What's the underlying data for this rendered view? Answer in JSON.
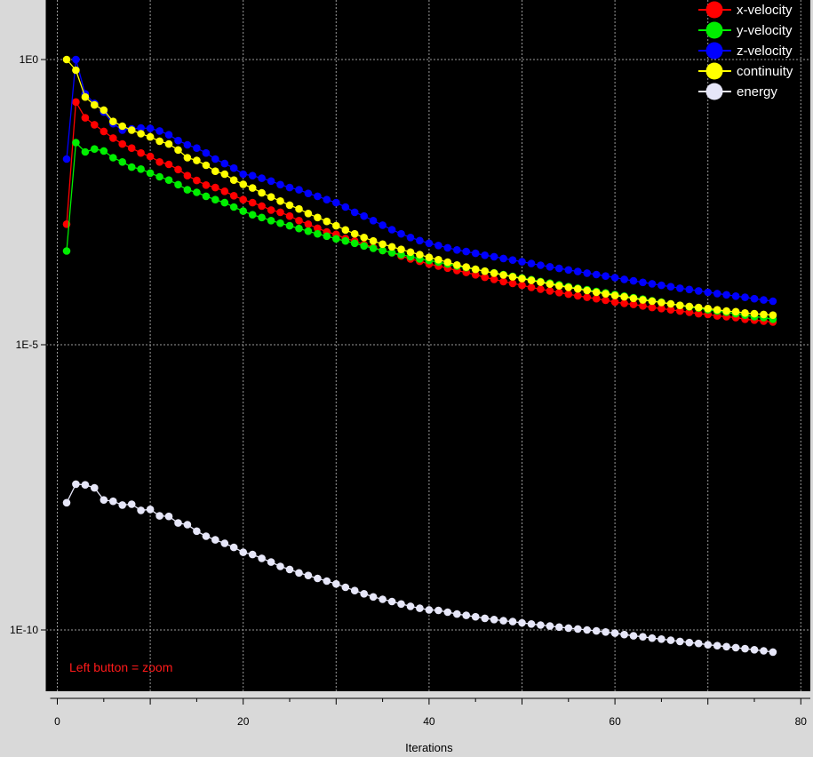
{
  "hint": "Left button = zoom",
  "colors": {
    "background": "#d9d9d9",
    "plot_bg": "#000000",
    "grid": "#9a9a9a",
    "hint": "#ff1a1a"
  },
  "chart_data": {
    "type": "line",
    "title": "",
    "xlabel": "Iterations",
    "ylabel": "",
    "yscale": "log",
    "xlim": [
      0,
      80
    ],
    "ylim": [
      1e-11,
      10
    ],
    "x_ticks": [
      0,
      20,
      40,
      60,
      80
    ],
    "x_tick_labels": [
      "0",
      "20",
      "40",
      "60",
      "80"
    ],
    "y_ticks": [
      1,
      1e-05,
      1e-10
    ],
    "y_tick_labels": [
      "1E0",
      "1E-5",
      "1E-10"
    ],
    "grid": true,
    "legend_position": "top-right",
    "x": [
      1,
      2,
      3,
      4,
      5,
      6,
      7,
      8,
      9,
      10,
      11,
      12,
      13,
      14,
      15,
      16,
      17,
      18,
      19,
      20,
      21,
      22,
      23,
      24,
      25,
      26,
      27,
      28,
      29,
      30,
      31,
      32,
      33,
      34,
      35,
      36,
      37,
      38,
      39,
      40,
      41,
      42,
      43,
      44,
      45,
      46,
      47,
      48,
      49,
      50,
      51,
      52,
      53,
      54,
      55,
      56,
      57,
      58,
      59,
      60,
      61,
      62,
      63,
      64,
      65,
      66,
      67,
      68,
      69,
      70,
      71,
      72,
      73,
      74,
      75,
      76,
      77
    ],
    "series": [
      {
        "name": "x-velocity",
        "color": "#ff0000",
        "values": [
          0.0013,
          0.18,
          0.095,
          0.072,
          0.055,
          0.042,
          0.033,
          0.028,
          0.023,
          0.02,
          0.016,
          0.0145,
          0.0118,
          0.0092,
          0.0076,
          0.0063,
          0.0057,
          0.0049,
          0.0041,
          0.0035,
          0.0031,
          0.0027,
          0.0023,
          0.0021,
          0.0018,
          0.0015,
          0.0013,
          0.0011,
          0.00095,
          0.00086,
          0.00073,
          0.00066,
          0.00057,
          0.00051,
          0.00045,
          0.00041,
          0.00036,
          0.00032,
          0.00029,
          0.00026,
          0.00024,
          0.00022,
          0.0002,
          0.000185,
          0.000168,
          0.000152,
          0.00014,
          0.000128,
          0.000119,
          0.00011,
          0.000101,
          9.4e-05,
          8.8e-05,
          8.2e-05,
          7.7e-05,
          7.2e-05,
          6.8e-05,
          6.4e-05,
          6e-05,
          5.6e-05,
          5.3e-05,
          5.1e-05,
          4.8e-05,
          4.5e-05,
          4.3e-05,
          4.1e-05,
          3.9e-05,
          3.7e-05,
          3.5e-05,
          3.4e-05,
          3.2e-05,
          3.1e-05,
          3e-05,
          2.8e-05,
          2.7e-05,
          2.6e-05,
          2.5e-05
        ]
      },
      {
        "name": "y-velocity",
        "color": "#00ee00",
        "values": [
          0.00044,
          0.035,
          0.024,
          0.027,
          0.025,
          0.019,
          0.016,
          0.013,
          0.012,
          0.0102,
          0.0088,
          0.0077,
          0.0064,
          0.0052,
          0.0047,
          0.004,
          0.0035,
          0.0031,
          0.0026,
          0.0022,
          0.0019,
          0.0017,
          0.0015,
          0.00135,
          0.00122,
          0.00109,
          0.00098,
          0.00088,
          0.0008,
          0.00072,
          0.00066,
          0.0006,
          0.00054,
          0.00049,
          0.00045,
          0.00041,
          0.00038,
          0.00035,
          0.00032,
          0.0003,
          0.00028,
          0.00026,
          0.00024,
          0.000225,
          0.00021,
          0.000195,
          0.000182,
          0.00017,
          0.000158,
          0.000148,
          0.000138,
          0.000128,
          0.00012,
          0.000112,
          0.000104,
          9.8e-05,
          9.2e-05,
          8.6e-05,
          8.1e-05,
          7.6e-05,
          7.1e-05,
          6.7e-05,
          6.3e-05,
          5.9e-05,
          5.6e-05,
          5.2e-05,
          4.9e-05,
          4.6e-05,
          4.4e-05,
          4.1e-05,
          3.9e-05,
          3.7e-05,
          3.5e-05,
          3.3e-05,
          3.1e-05,
          3e-05,
          2.8e-05
        ]
      },
      {
        "name": "z-velocity",
        "color": "#0000ff",
        "values": [
          0.018,
          1.0,
          0.25,
          0.17,
          0.12,
          0.075,
          0.058,
          0.061,
          0.063,
          0.062,
          0.056,
          0.048,
          0.038,
          0.032,
          0.028,
          0.023,
          0.018,
          0.015,
          0.0125,
          0.0098,
          0.0092,
          0.0083,
          0.0074,
          0.0064,
          0.0057,
          0.0052,
          0.0045,
          0.004,
          0.0035,
          0.0031,
          0.0026,
          0.0021,
          0.0018,
          0.0015,
          0.00125,
          0.00104,
          0.00088,
          0.00076,
          0.00067,
          0.0006,
          0.00055,
          0.0005,
          0.00046,
          0.00043,
          0.0004,
          0.00037,
          0.00035,
          0.000325,
          0.000305,
          0.000285,
          0.000265,
          0.000248,
          0.000232,
          0.000218,
          0.000205,
          0.000192,
          0.00018,
          0.00017,
          0.00016,
          0.00015,
          0.00014,
          0.000132,
          0.000124,
          0.000117,
          0.00011,
          0.000104,
          9.8e-05,
          9.3e-05,
          8.8e-05,
          8.3e-05,
          7.9e-05,
          7.5e-05,
          7.1e-05,
          6.8e-05,
          6.4e-05,
          6.1e-05,
          5.8e-05
        ]
      },
      {
        "name": "continuity",
        "color": "#ffff00",
        "values": [
          1.0,
          0.65,
          0.22,
          0.16,
          0.13,
          0.082,
          0.068,
          0.058,
          0.05,
          0.044,
          0.037,
          0.033,
          0.026,
          0.019,
          0.017,
          0.014,
          0.011,
          0.0098,
          0.0077,
          0.0065,
          0.0056,
          0.0046,
          0.0039,
          0.0033,
          0.0028,
          0.0024,
          0.002,
          0.0017,
          0.00145,
          0.00122,
          0.00103,
          0.00088,
          0.00076,
          0.00066,
          0.00058,
          0.00052,
          0.00047,
          0.00042,
          0.00038,
          0.00034,
          0.00031,
          0.00028,
          0.00025,
          0.00023,
          0.00021,
          0.000195,
          0.00018,
          0.000167,
          0.000155,
          0.000144,
          0.000134,
          0.000125,
          0.000116,
          0.000108,
          0.000101,
          9.5e-05,
          8.9e-05,
          8.3e-05,
          7.8e-05,
          7.3e-05,
          6.9e-05,
          6.5e-05,
          6.1e-05,
          5.8e-05,
          5.5e-05,
          5.2e-05,
          4.9e-05,
          4.7e-05,
          4.5e-05,
          4.3e-05,
          4.1e-05,
          3.9e-05,
          3.8e-05,
          3.6e-05,
          3.5e-05,
          3.4e-05,
          3.3e-05
        ]
      },
      {
        "name": "energy",
        "color": "#e6e6f8",
        "values": [
          1.7e-08,
          3.6e-08,
          3.5e-08,
          3.1e-08,
          1.9e-08,
          1.8e-08,
          1.55e-08,
          1.6e-08,
          1.25e-08,
          1.3e-08,
          1e-08,
          9.8e-09,
          7.5e-09,
          7e-09,
          5.4e-09,
          4.4e-09,
          3.8e-09,
          3.3e-09,
          2.8e-09,
          2.3e-09,
          2.1e-09,
          1.8e-09,
          1.55e-09,
          1.3e-09,
          1.15e-09,
          1e-09,
          9e-10,
          8e-10,
          7.2e-10,
          6.4e-10,
          5.6e-10,
          4.9e-10,
          4.3e-10,
          3.8e-10,
          3.45e-10,
          3.15e-10,
          2.85e-10,
          2.6e-10,
          2.4e-10,
          2.25e-10,
          2.2e-10,
          2.05e-10,
          1.9e-10,
          1.8e-10,
          1.7e-10,
          1.6e-10,
          1.52e-10,
          1.45e-10,
          1.4e-10,
          1.33e-10,
          1.27e-10,
          1.22e-10,
          1.17e-10,
          1.12e-10,
          1.08e-10,
          1.04e-10,
          1e-10,
          9.6e-11,
          9.2e-11,
          8.8e-11,
          8.3e-11,
          7.9e-11,
          7.6e-11,
          7.2e-11,
          6.9e-11,
          6.6e-11,
          6.3e-11,
          6e-11,
          5.8e-11,
          5.5e-11,
          5.3e-11,
          5.1e-11,
          4.9e-11,
          4.7e-11,
          4.5e-11,
          4.3e-11,
          4.1e-11
        ]
      }
    ]
  }
}
